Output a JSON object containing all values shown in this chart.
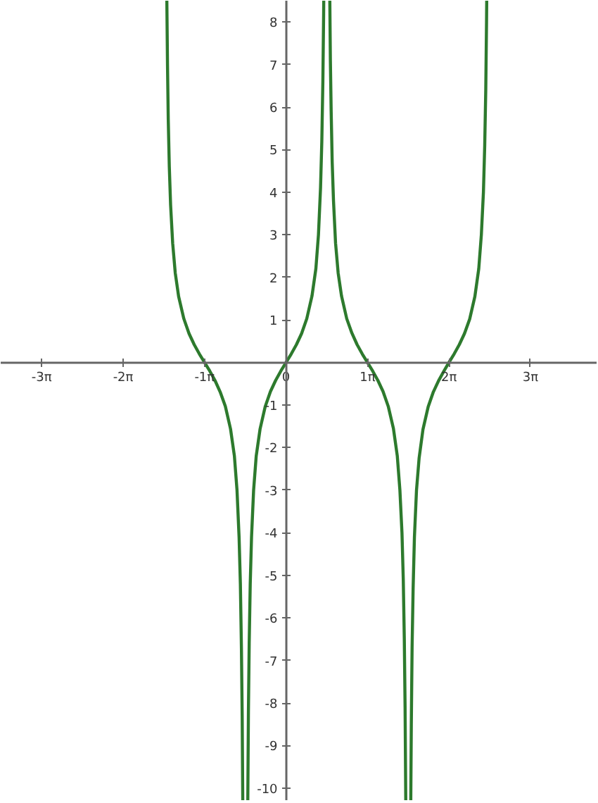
{
  "chart_data": {
    "type": "line",
    "xlim": [
      -11,
      12
    ],
    "ylim": [
      -10.3,
      8.5
    ],
    "xticks": [
      {
        "value": -9.42,
        "label": "-3π"
      },
      {
        "value": -6.28,
        "label": "-2π"
      },
      {
        "value": -3.14,
        "label": "-1π"
      },
      {
        "value": 0,
        "label": "0"
      },
      {
        "value": 3.14,
        "label": "1π"
      },
      {
        "value": 6.28,
        "label": "2π"
      },
      {
        "value": 9.42,
        "label": "3π"
      }
    ],
    "yticks": [
      -10,
      -9,
      -8,
      -7,
      -6,
      -5,
      -4,
      -3,
      -2,
      -1,
      1,
      2,
      3,
      4,
      5,
      6,
      7,
      8
    ],
    "grid": false,
    "line_style": "solid",
    "series": [
      {
        "color": "#2d7a2d",
        "x": [
          -4.595,
          -4.57,
          -4.54,
          -4.5,
          -4.45,
          -4.37,
          -4.27,
          -4.14,
          -3.94,
          -3.74,
          -3.54,
          -3.34,
          -3.14,
          -2.94,
          -2.74,
          -2.54,
          -2.34,
          -2.14,
          -1.99,
          -1.89,
          -1.81,
          -1.76,
          -1.72,
          -1.69,
          -1.668
        ],
        "values": [
          8.5,
          7.0,
          5.7,
          4.6,
          3.7,
          2.8,
          2.1,
          1.55,
          1.03,
          0.68,
          0.42,
          0.2,
          0,
          -0.2,
          -0.42,
          -0.69,
          -1.03,
          -1.56,
          -2.2,
          -3.0,
          -4.1,
          -5.2,
          -6.7,
          -8.3,
          -10.3
        ]
      },
      {
        "color": "#2d7a2d",
        "x": [
          -1.474,
          -1.45,
          -1.42,
          -1.38,
          -1.33,
          -1.25,
          -1.15,
          -1.0,
          -0.8,
          -0.6,
          -0.4,
          -0.2,
          0,
          0.2,
          0.4,
          0.6,
          0.8,
          1.0,
          1.15,
          1.25,
          1.33,
          1.38,
          1.42,
          1.45,
          1.454
        ],
        "values": [
          -10.3,
          -8.2,
          -6.6,
          -5.2,
          -4.1,
          -3.0,
          -2.2,
          -1.56,
          -1.03,
          -0.68,
          -0.42,
          -0.2,
          0,
          0.2,
          0.42,
          0.68,
          1.03,
          1.56,
          2.2,
          3.0,
          4.1,
          5.2,
          6.6,
          8.2,
          8.5
        ]
      },
      {
        "color": "#2d7a2d",
        "x": [
          1.688,
          1.71,
          1.74,
          1.78,
          1.83,
          1.91,
          2.01,
          2.14,
          2.34,
          2.54,
          2.74,
          2.94,
          3.14,
          3.34,
          3.54,
          3.74,
          3.94,
          4.14,
          4.29,
          4.39,
          4.47,
          4.52,
          4.56,
          4.59,
          4.616
        ],
        "values": [
          8.5,
          7.1,
          5.9,
          4.7,
          3.8,
          2.8,
          2.1,
          1.56,
          1.03,
          0.69,
          0.42,
          0.2,
          0,
          -0.2,
          -0.42,
          -0.68,
          -1.03,
          -1.55,
          -2.2,
          -3.0,
          -4.0,
          -5.1,
          -6.5,
          -8.1,
          -10.3
        ]
      },
      {
        "color": "#2d7a2d",
        "x": [
          4.809,
          4.83,
          4.86,
          4.9,
          4.95,
          5.03,
          5.13,
          5.28,
          5.48,
          5.68,
          5.88,
          6.08,
          6.28,
          6.48,
          6.68,
          6.88,
          7.08,
          7.28,
          7.43,
          7.53,
          7.61,
          7.66,
          7.7,
          7.73,
          7.737
        ],
        "values": [
          -10.3,
          -8.5,
          -6.7,
          -5.3,
          -4.1,
          -3.0,
          -2.25,
          -1.57,
          -1.04,
          -0.69,
          -0.43,
          -0.21,
          0,
          0.2,
          0.42,
          0.68,
          1.02,
          1.55,
          2.2,
          3.0,
          4.0,
          5.1,
          6.4,
          8.0,
          8.5
        ]
      }
    ]
  }
}
